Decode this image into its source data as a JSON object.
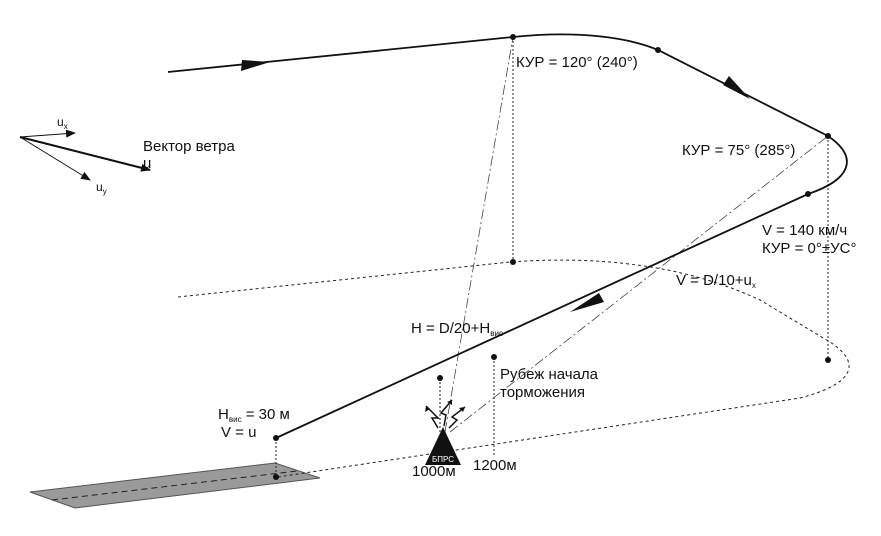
{
  "labels": {
    "kur_120": "КУР = 120° (240°)",
    "kur_75": "КУР = 75° (285°)",
    "wind_vector": "Вектор ветра",
    "wind_u": "u",
    "wind_ux": "u",
    "wind_ux_sub": "x",
    "wind_uy": "u",
    "wind_uy_sub": "y",
    "v_140": "V = 140 км/ч",
    "kur_0": "КУР = 0°±УС°",
    "v_formula": "V = D/10+u",
    "v_formula_sub": "x",
    "h_formula": "H = D/20+H",
    "h_formula_sub": "вис",
    "braking_line1": "Рубеж начала",
    "braking_line2": "торможения",
    "h_hover": "H",
    "h_hover_sub": "вис",
    "h_hover_value": " = 30 м",
    "v_u": "V = u",
    "beacon": "БПРС",
    "dist_1000": "1000м",
    "dist_1200": "1200м"
  },
  "colors": {
    "line": "#111111",
    "runway_fill": "#9a9a9a",
    "beacon": "#111111"
  }
}
